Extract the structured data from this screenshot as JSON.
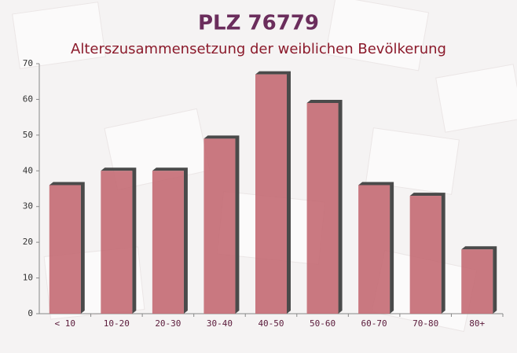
{
  "chart_data": {
    "type": "bar",
    "title": "PLZ 76779",
    "subtitle": "Alterszusammensetzung der weiblichen Bevölkerung",
    "categories": [
      "< 10",
      "10-20",
      "20-30",
      "30-40",
      "40-50",
      "50-60",
      "60-70",
      "70-80",
      "80+"
    ],
    "values": [
      36,
      40,
      40,
      49,
      67,
      59,
      36,
      33,
      18
    ],
    "color": "#c46a73",
    "ylim": [
      0,
      70
    ],
    "yticks": [
      0,
      10,
      20,
      30,
      40,
      50,
      60,
      70
    ],
    "grid": false
  }
}
